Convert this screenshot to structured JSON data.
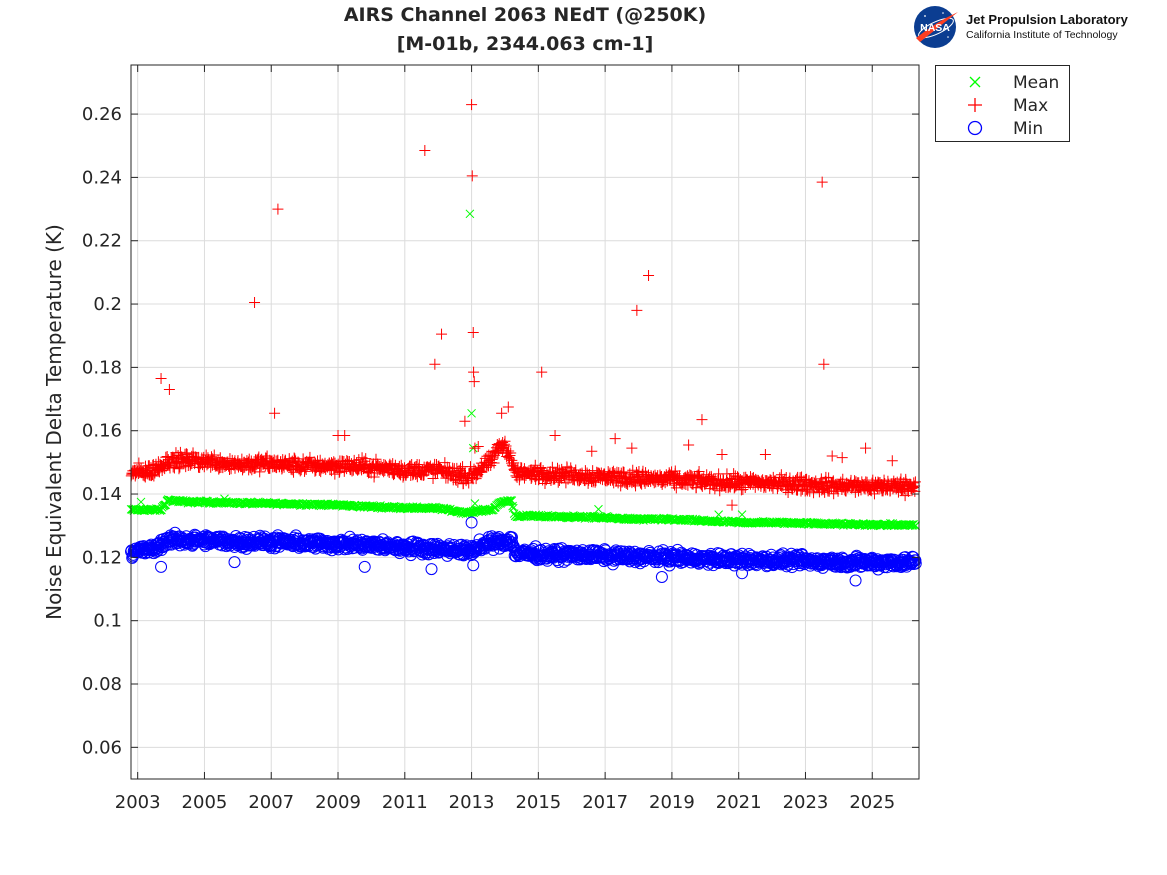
{
  "header": {
    "title_line1": "AIRS Channel 2063 NEdT (@250K)",
    "title_line2": "[M-01b, 2344.063 cm-1]"
  },
  "logo": {
    "org_name": "Jet Propulsion Laboratory",
    "org_sub": "California Institute of Technology",
    "badge_text": "NASA"
  },
  "chart_data": {
    "type": "scatter",
    "title": "AIRS Channel 2063 NEdT (@250K)",
    "subtitle": "[M-01b, 2344.063 cm-1]",
    "xlabel": "",
    "ylabel": "Noise Equivalent Delta Temperature (K)",
    "xlim": [
      2002.8,
      2026.4
    ],
    "ylim": [
      0.05,
      0.2755
    ],
    "xticks": [
      2003,
      2005,
      2007,
      2009,
      2011,
      2013,
      2015,
      2017,
      2019,
      2021,
      2023,
      2025
    ],
    "xtick_labels": [
      "2003",
      "2005",
      "2007",
      "2009",
      "2011",
      "2013",
      "2015",
      "2017",
      "2019",
      "2021",
      "2023",
      "2025"
    ],
    "yticks": [
      0.06,
      0.08,
      0.1,
      0.12,
      0.14,
      0.16,
      0.18,
      0.2,
      0.22,
      0.24,
      0.26
    ],
    "ytick_labels": [
      "0.06",
      "0.08",
      "0.1",
      "0.12",
      "0.14",
      "0.16",
      "0.18",
      "0.2",
      "0.22",
      "0.24",
      "0.26"
    ],
    "grid": true,
    "legend_position": "outside-top-right",
    "series": [
      {
        "name": "Mean",
        "marker": "x",
        "color": "#00ff00",
        "x": [
          2002.8,
          2003.5,
          2003.7,
          2003.9,
          2004.5,
          2005,
          2006,
          2007,
          2008,
          2009,
          2010,
          2011,
          2012,
          2012.9,
          2013.05,
          2013.3,
          2013.6,
          2013.9,
          2014.2,
          2014.3,
          2015,
          2016,
          2017,
          2018,
          2019,
          2020,
          2021,
          2022,
          2023,
          2024,
          2025,
          2026.3
        ],
        "y": [
          0.135,
          0.135,
          0.135,
          0.138,
          0.1375,
          0.1375,
          0.1372,
          0.137,
          0.1368,
          0.1365,
          0.136,
          0.1357,
          0.1355,
          0.134,
          0.1345,
          0.1348,
          0.135,
          0.1375,
          0.138,
          0.133,
          0.133,
          0.1328,
          0.1325,
          0.132,
          0.132,
          0.1315,
          0.131,
          0.131,
          0.1308,
          0.1305,
          0.1303,
          0.1302
        ],
        "outliers_x": [
          2003.1,
          2005.6,
          2012.95,
          2013.0,
          2013.05,
          2013.1,
          2016.8,
          2020.4,
          2020.7,
          2021.1
        ],
        "outliers_y": [
          0.1375,
          0.1385,
          0.2285,
          0.1655,
          0.1545,
          0.137,
          0.1352,
          0.1335,
          0.1315,
          0.1335
        ]
      },
      {
        "name": "Max",
        "marker": "+",
        "color": "#ff0000",
        "x": [
          2002.8,
          2003.5,
          2003.9,
          2004.5,
          2005,
          2006,
          2007,
          2008,
          2009,
          2010,
          2011,
          2012,
          2012.9,
          2013.3,
          2013.6,
          2013.85,
          2014.0,
          2014.2,
          2014.3,
          2015,
          2016,
          2017,
          2018,
          2019,
          2020,
          2021,
          2022,
          2023,
          2024,
          2025,
          2026.3
        ],
        "y": [
          0.1465,
          0.1475,
          0.1505,
          0.1505,
          0.1505,
          0.1495,
          0.1495,
          0.149,
          0.149,
          0.1485,
          0.1475,
          0.1475,
          0.1455,
          0.148,
          0.1505,
          0.155,
          0.1555,
          0.151,
          0.1465,
          0.1465,
          0.146,
          0.1455,
          0.145,
          0.1445,
          0.144,
          0.1435,
          0.1435,
          0.143,
          0.1425,
          0.1425,
          0.1425
        ],
        "outliers_x": [
          2003.7,
          2003.95,
          2006.5,
          2007.1,
          2007.2,
          2009.0,
          2009.2,
          2011.6,
          2011.9,
          2012.1,
          2012.8,
          2013.0,
          2013.02,
          2013.05,
          2013.06,
          2013.08,
          2013.1,
          2013.2,
          2013.9,
          2014.1,
          2015.1,
          2015.5,
          2016.6,
          2017.3,
          2017.8,
          2017.95,
          2018.3,
          2019.5,
          2019.9,
          2020.5,
          2020.8,
          2021.8,
          2023.5,
          2023.55,
          2023.8,
          2024.1,
          2024.8,
          2025.6
        ],
        "outliers_y": [
          0.1765,
          0.173,
          0.2005,
          0.1655,
          0.23,
          0.1585,
          0.1585,
          0.2485,
          0.181,
          0.1905,
          0.163,
          0.263,
          0.2405,
          0.191,
          0.1785,
          0.1755,
          0.1545,
          0.155,
          0.1655,
          0.1675,
          0.1785,
          0.1585,
          0.1535,
          0.1575,
          0.1545,
          0.198,
          0.209,
          0.1555,
          0.1635,
          0.1525,
          0.1365,
          0.1525,
          0.2385,
          0.181,
          0.152,
          0.1515,
          0.1545,
          0.1505
        ]
      },
      {
        "name": "Min",
        "marker": "o",
        "color": "#0000ff",
        "x": [
          2002.8,
          2003.5,
          2003.9,
          2004.5,
          2005,
          2006,
          2007,
          2008,
          2009,
          2010,
          2011,
          2012,
          2012.9,
          2013.3,
          2013.6,
          2013.9,
          2014.2,
          2014.3,
          2015,
          2016,
          2017,
          2018,
          2019,
          2020,
          2021,
          2022,
          2023,
          2024,
          2025,
          2026.3
        ],
        "y": [
          0.122,
          0.1225,
          0.1255,
          0.1255,
          0.1252,
          0.125,
          0.1248,
          0.1245,
          0.1242,
          0.1238,
          0.1232,
          0.1228,
          0.122,
          0.1235,
          0.1245,
          0.125,
          0.1255,
          0.1215,
          0.121,
          0.1208,
          0.1205,
          0.1202,
          0.12,
          0.1195,
          0.1192,
          0.119,
          0.1188,
          0.1185,
          0.1185,
          0.1185
        ],
        "outliers_x": [
          2003.7,
          2005.9,
          2009.8,
          2011.8,
          2013.0,
          2013.05,
          2018.7,
          2021.1,
          2024.5
        ],
        "outliers_y": [
          0.117,
          0.1185,
          0.117,
          0.1163,
          0.131,
          0.1175,
          0.1138,
          0.115,
          0.1127
        ]
      }
    ]
  },
  "legend": {
    "items": [
      {
        "label": "Mean",
        "marker": "x",
        "color": "#00ff00"
      },
      {
        "label": "Max",
        "marker": "+",
        "color": "#ff0000"
      },
      {
        "label": "Min",
        "marker": "o",
        "color": "#0000ff"
      }
    ]
  }
}
